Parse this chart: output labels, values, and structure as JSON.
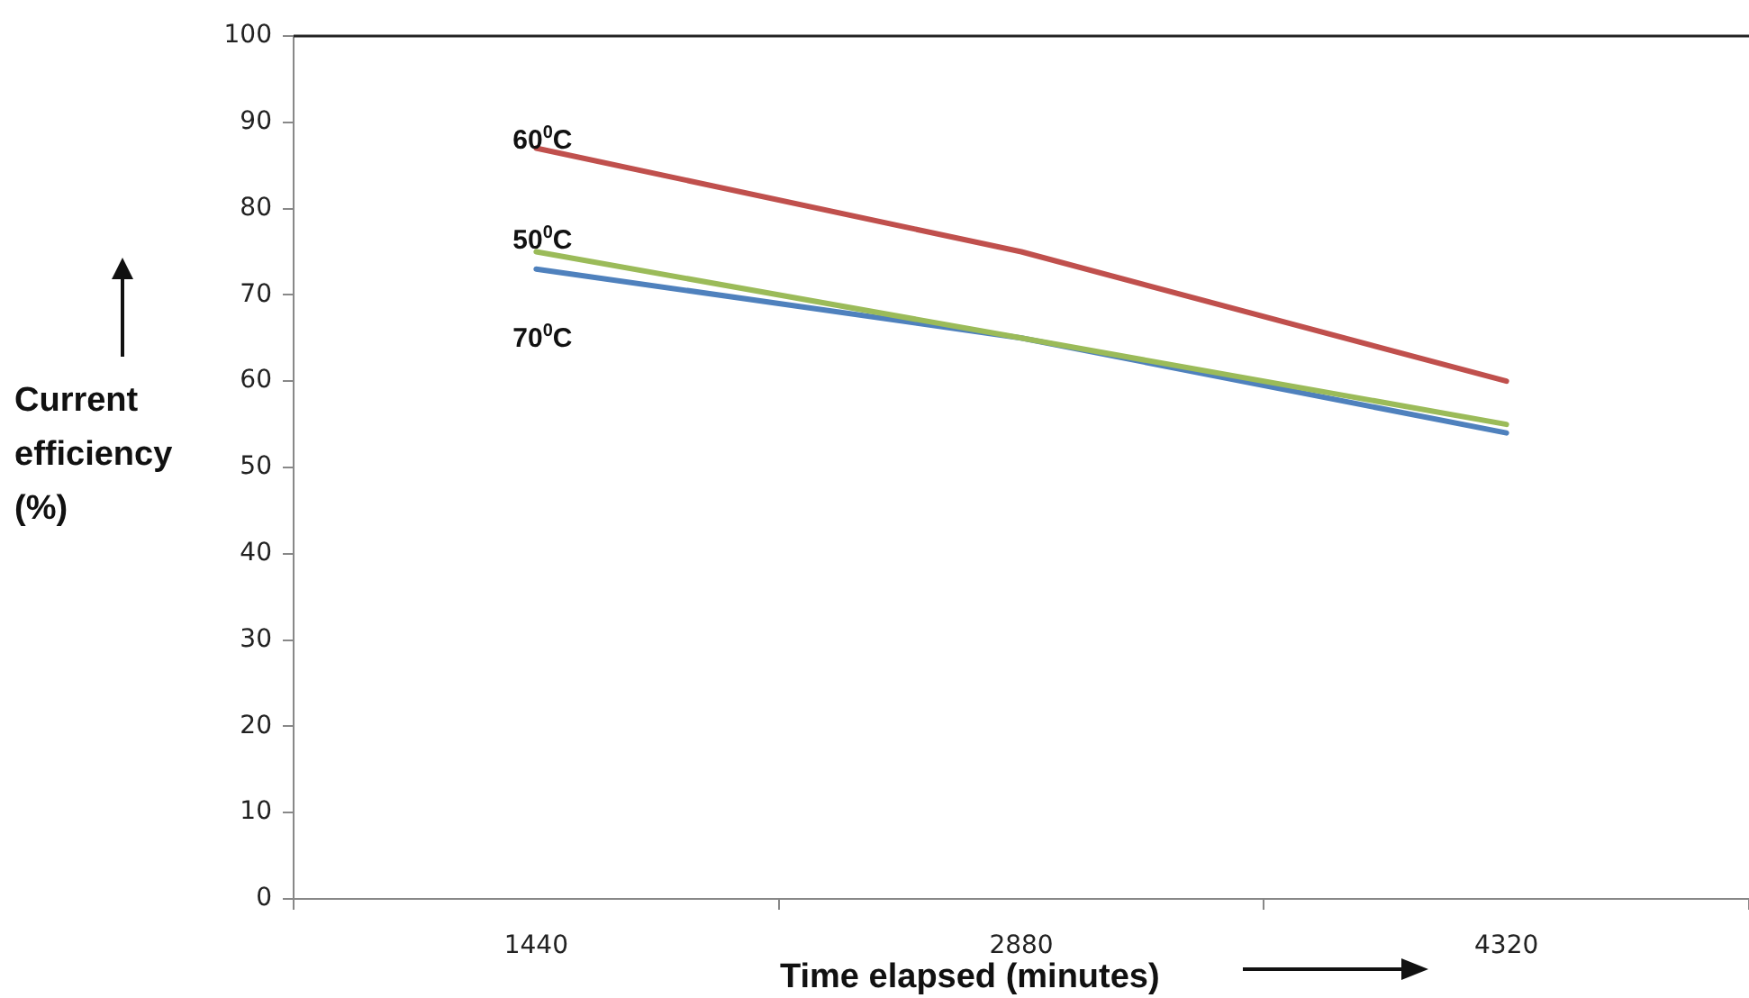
{
  "chart_data": {
    "type": "line",
    "xlabel": "Time elapsed (minutes)",
    "ylabel": "Current efficiency (%)",
    "categories": [
      "1440",
      "2880",
      "4320"
    ],
    "series": [
      {
        "name": "60$^{0}$C",
        "color": "#c0504d",
        "values": [
          87,
          75,
          60
        ]
      },
      {
        "name": "50$^{0}$C",
        "color": "#9bbb59",
        "values": [
          75,
          65,
          55
        ]
      },
      {
        "name": "70$^{0}$C",
        "color": "#4f81bd",
        "values": [
          73,
          65,
          54
        ]
      }
    ],
    "ylim": [
      0,
      100
    ],
    "yticks": [
      0,
      10,
      20,
      30,
      40,
      50,
      60,
      70,
      80,
      90,
      100
    ],
    "grid": false,
    "legend": false,
    "marker": "none",
    "line_style": "solid"
  }
}
